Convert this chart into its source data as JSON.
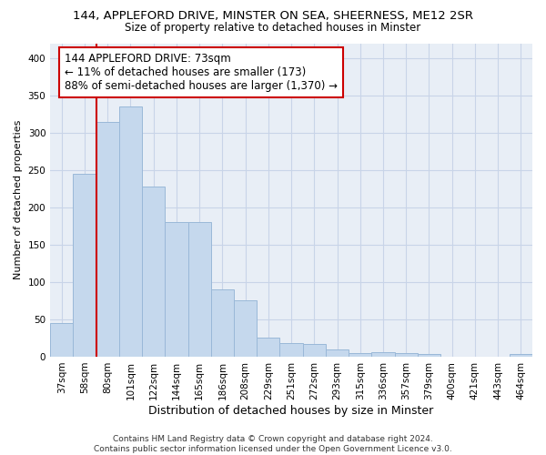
{
  "title": "144, APPLEFORD DRIVE, MINSTER ON SEA, SHEERNESS, ME12 2SR",
  "subtitle": "Size of property relative to detached houses in Minster",
  "xlabel": "Distribution of detached houses by size in Minster",
  "ylabel": "Number of detached properties",
  "categories": [
    "37sqm",
    "58sqm",
    "80sqm",
    "101sqm",
    "122sqm",
    "144sqm",
    "165sqm",
    "186sqm",
    "208sqm",
    "229sqm",
    "251sqm",
    "272sqm",
    "293sqm",
    "315sqm",
    "336sqm",
    "357sqm",
    "379sqm",
    "400sqm",
    "421sqm",
    "443sqm",
    "464sqm"
  ],
  "values": [
    45,
    245,
    315,
    335,
    228,
    180,
    180,
    90,
    75,
    26,
    18,
    17,
    10,
    5,
    6,
    5,
    3,
    0,
    0,
    0,
    4
  ],
  "bar_color": "#c5d8ed",
  "bar_edge_color": "#9ab8d8",
  "marker_color": "#cc0000",
  "annotation_text": "144 APPLEFORD DRIVE: 73sqm\n← 11% of detached houses are smaller (173)\n88% of semi-detached houses are larger (1,370) →",
  "annotation_box_color": "#ffffff",
  "annotation_box_edge": "#cc0000",
  "ylim": [
    0,
    420
  ],
  "yticks": [
    0,
    50,
    100,
    150,
    200,
    250,
    300,
    350,
    400
  ],
  "grid_color": "#c8d4e8",
  "background_color": "#e8eef6",
  "footer_text": "Contains HM Land Registry data © Crown copyright and database right 2024.\nContains public sector information licensed under the Open Government Licence v3.0.",
  "title_fontsize": 9.5,
  "subtitle_fontsize": 8.5,
  "xlabel_fontsize": 9,
  "ylabel_fontsize": 8,
  "tick_fontsize": 7.5,
  "annotation_fontsize": 8.5,
  "footer_fontsize": 6.5
}
